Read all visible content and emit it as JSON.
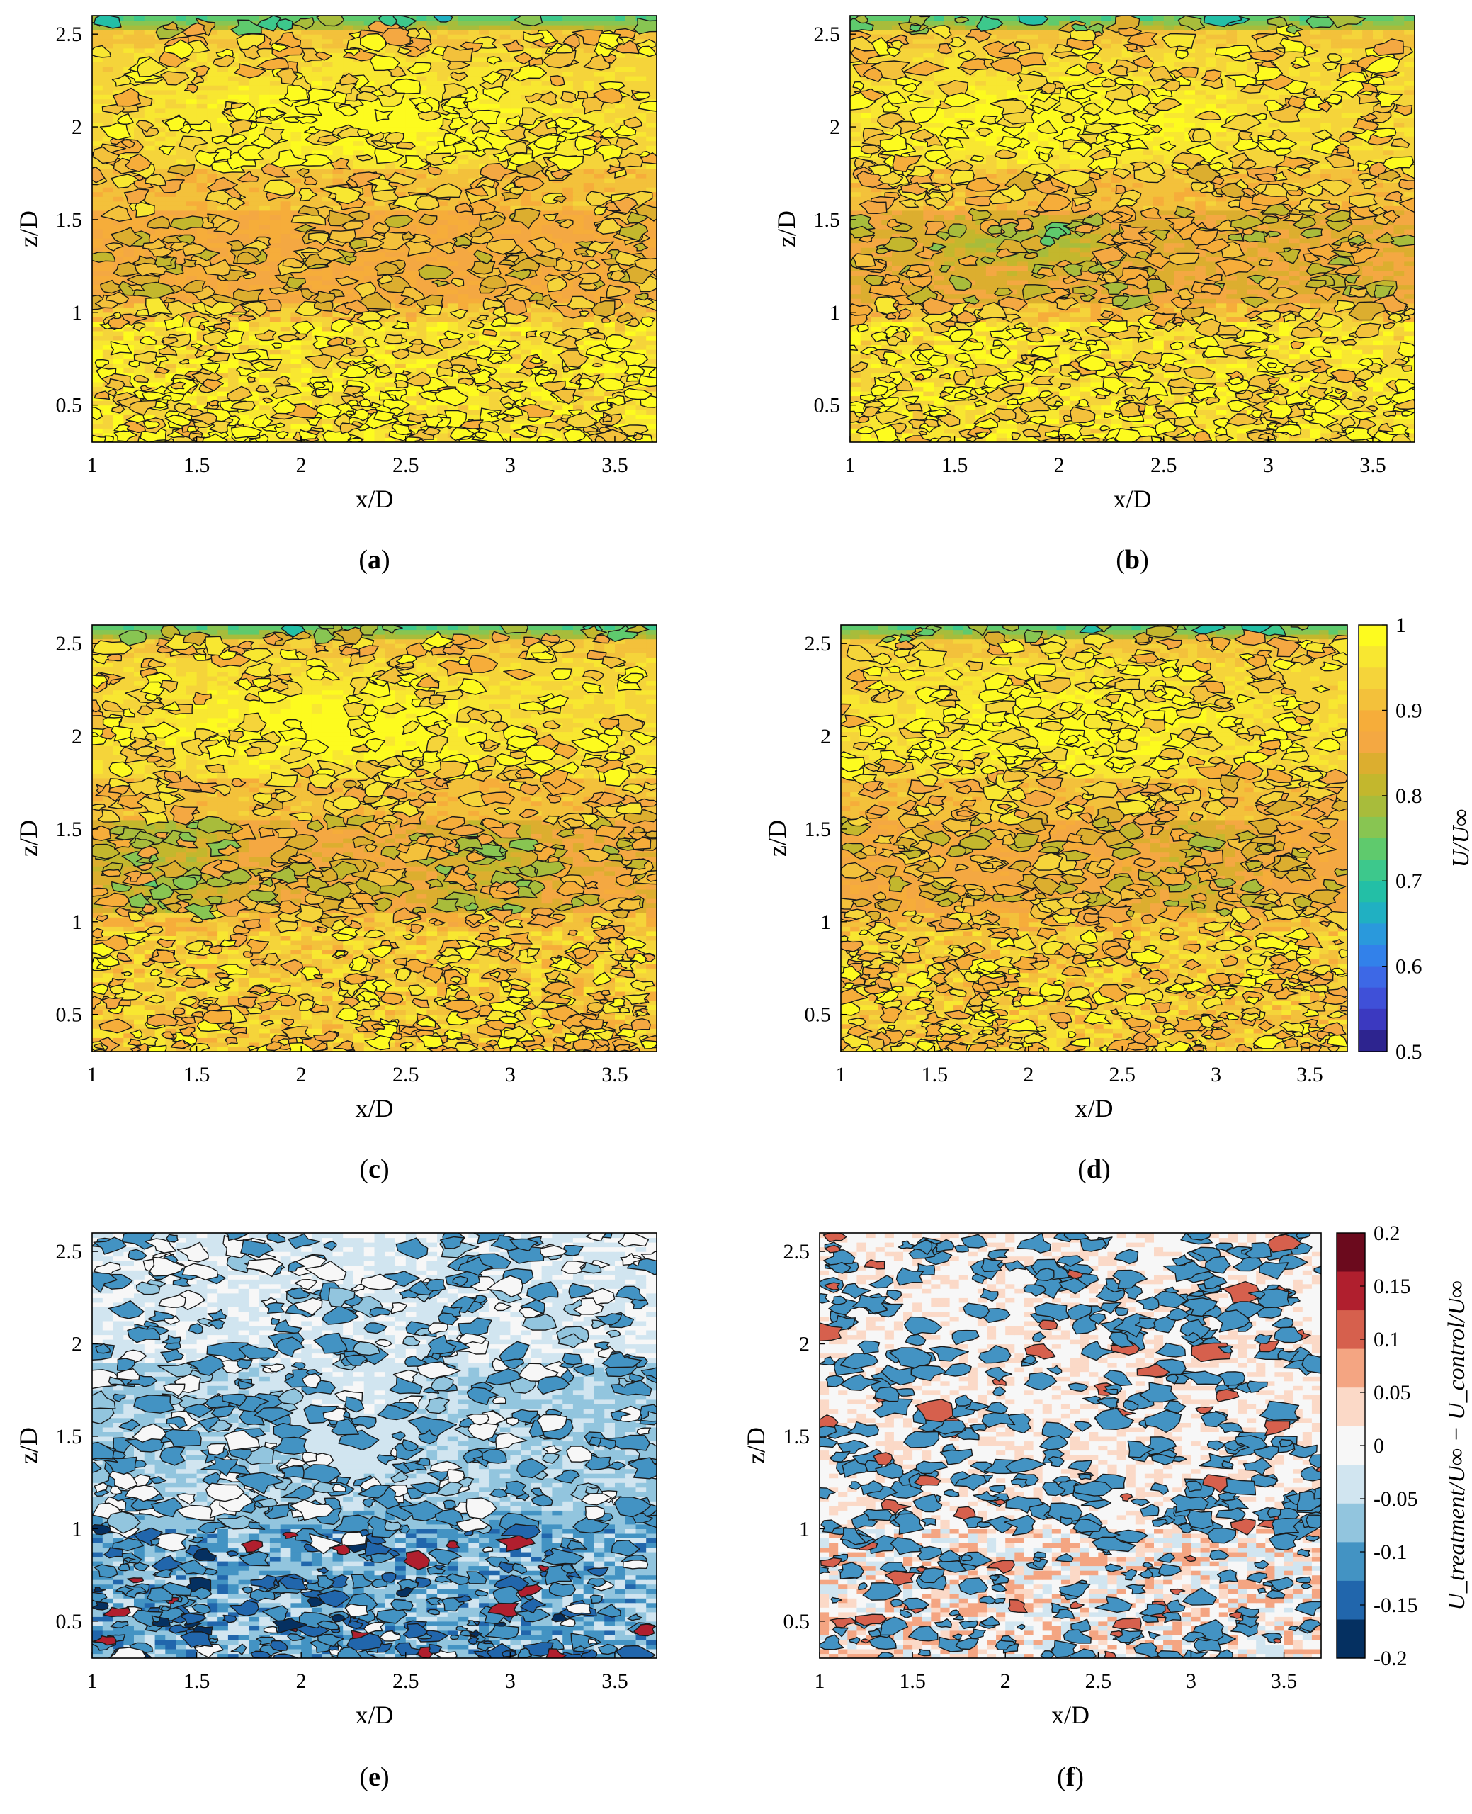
{
  "figure": {
    "panels": [
      {
        "id": "a",
        "caption": "a",
        "colormap": "speed",
        "cbar": false
      },
      {
        "id": "b",
        "caption": "b",
        "colormap": "speed",
        "cbar": false
      },
      {
        "id": "c",
        "caption": "c",
        "colormap": "speed",
        "cbar": false
      },
      {
        "id": "d",
        "caption": "d",
        "colormap": "speed",
        "cbar": true
      },
      {
        "id": "e",
        "caption": "e",
        "colormap": "diff",
        "cbar": false
      },
      {
        "id": "f",
        "caption": "f",
        "colormap": "diff",
        "cbar": true
      }
    ],
    "colorbars": {
      "speed": {
        "label": "U/U∞",
        "ticks": [
          "1",
          "0.9",
          "0.8",
          "0.7",
          "0.6",
          "0.5"
        ],
        "colors": [
          "#fdfb1f",
          "#f8e731",
          "#f5d43a",
          "#f3c13b",
          "#f6ad3a",
          "#f4a842",
          "#dcae2f",
          "#c3b72d",
          "#a8bc3b",
          "#88c552",
          "#5fca6d",
          "#3dc88c",
          "#23bfa6",
          "#20b0c2",
          "#2a99dc",
          "#3281ea",
          "#3d68e6",
          "#3f50d8",
          "#3b39c0",
          "#2d248f"
        ]
      },
      "diff": {
        "label": "U_treatment/U∞ − U_control/U∞",
        "ticks": [
          "0.2",
          "0.15",
          "0.1",
          "0.05",
          "0",
          "-0.05",
          "-0.1",
          "-0.15",
          "-0.2"
        ],
        "colors": [
          "#6b0a1d",
          "#b01f2e",
          "#d6604d",
          "#f4a582",
          "#fbd9c7",
          "#f7f7f7",
          "#d1e5f0",
          "#92c5de",
          "#4393c3",
          "#2166ac",
          "#053061"
        ]
      }
    }
  },
  "chart_data": [
    {
      "type": "heatmap",
      "panel": "a",
      "xlabel": "x/D",
      "ylabel": "z/D",
      "xlim": [
        1,
        3.7
      ],
      "ylim": [
        0.3,
        2.6
      ],
      "xticks": [
        "1",
        "1.5",
        "2",
        "2.5",
        "3",
        "3.5"
      ],
      "yticks": [
        "0.5",
        "1",
        "1.5",
        "2",
        "2.5"
      ],
      "colorbar_label": "U/U∞",
      "clim": [
        0.5,
        1.0
      ],
      "bands": [
        {
          "z_from": 2.5,
          "z_to": 2.6,
          "value": 0.78
        },
        {
          "z_from": 2.2,
          "z_to": 2.45,
          "value": 0.96
        },
        {
          "z_from": 1.8,
          "z_to": 2.15,
          "value": 0.99
        },
        {
          "z_from": 1.5,
          "z_to": 1.7,
          "value": 0.92
        },
        {
          "z_from": 1.15,
          "z_to": 1.45,
          "value": 0.87
        },
        {
          "z_from": 0.3,
          "z_to": 1.0,
          "value": 0.97
        }
      ]
    },
    {
      "type": "heatmap",
      "panel": "b",
      "xlabel": "x/D",
      "ylabel": "z/D",
      "xlim": [
        1,
        3.7
      ],
      "ylim": [
        0.3,
        2.6
      ],
      "xticks": [
        "1",
        "1.5",
        "2",
        "2.5",
        "3",
        "3.5"
      ],
      "yticks": [
        "0.5",
        "1",
        "1.5",
        "2",
        "2.5"
      ],
      "colorbar_label": "U/U∞",
      "clim": [
        0.5,
        1.0
      ],
      "bands": [
        {
          "z_from": 2.5,
          "z_to": 2.6,
          "value": 0.78
        },
        {
          "z_from": 1.9,
          "z_to": 2.4,
          "value": 0.96
        },
        {
          "z_from": 1.55,
          "z_to": 1.75,
          "value": 0.92
        },
        {
          "z_from": 1.2,
          "z_to": 1.5,
          "value": 0.82
        },
        {
          "z_from": 0.3,
          "z_to": 1.1,
          "value": 0.96
        }
      ]
    },
    {
      "type": "heatmap",
      "panel": "c",
      "xlabel": "x/D",
      "ylabel": "z/D",
      "xlim": [
        1,
        3.7
      ],
      "ylim": [
        0.3,
        2.6
      ],
      "xticks": [
        "1",
        "1.5",
        "2",
        "2.5",
        "3",
        "3.5"
      ],
      "yticks": [
        "0.5",
        "1",
        "1.5",
        "2",
        "2.5"
      ],
      "colorbar_label": "U/U∞",
      "clim": [
        0.5,
        1.0
      ],
      "bands": [
        {
          "z_from": 2.5,
          "z_to": 2.6,
          "value": 0.78
        },
        {
          "z_from": 1.9,
          "z_to": 2.4,
          "value": 0.96
        },
        {
          "z_from": 1.55,
          "z_to": 1.75,
          "value": 0.92
        },
        {
          "z_from": 1.05,
          "z_to": 1.5,
          "value": 0.85
        },
        {
          "z_from": 0.3,
          "z_to": 1.0,
          "value": 0.93
        }
      ]
    },
    {
      "type": "heatmap",
      "panel": "d",
      "xlabel": "x/D",
      "ylabel": "z/D",
      "xlim": [
        1,
        3.7
      ],
      "ylim": [
        0.3,
        2.6
      ],
      "xticks": [
        "1",
        "1.5",
        "2",
        "2.5",
        "3",
        "3.5"
      ],
      "yticks": [
        "0.5",
        "1",
        "1.5",
        "2",
        "2.5"
      ],
      "colorbar_label": "U/U∞",
      "clim": [
        0.5,
        1.0
      ],
      "bands": [
        {
          "z_from": 2.5,
          "z_to": 2.6,
          "value": 0.78
        },
        {
          "z_from": 1.9,
          "z_to": 2.4,
          "value": 0.97
        },
        {
          "z_from": 1.55,
          "z_to": 1.75,
          "value": 0.92
        },
        {
          "z_from": 1.15,
          "z_to": 1.5,
          "value": 0.86
        },
        {
          "z_from": 0.3,
          "z_to": 1.05,
          "value": 0.94
        }
      ]
    },
    {
      "type": "heatmap",
      "panel": "e",
      "xlabel": "x/D",
      "ylabel": "z/D",
      "xlim": [
        1,
        3.7
      ],
      "ylim": [
        0.3,
        2.6
      ],
      "xticks": [
        "1",
        "1.5",
        "2",
        "2.5",
        "3",
        "3.5"
      ],
      "yticks": [
        "0.5",
        "1",
        "1.5",
        "2",
        "2.5"
      ],
      "colorbar_label": "U_treatment/U∞ − U_control/U∞",
      "clim": [
        -0.2,
        0.2
      ],
      "bands": [
        {
          "z_from": 1.9,
          "z_to": 2.6,
          "value": -0.02
        },
        {
          "z_from": 1.1,
          "z_to": 1.8,
          "value": -0.07
        },
        {
          "z_from": 0.3,
          "z_to": 1.0,
          "value": -0.1
        }
      ]
    },
    {
      "type": "heatmap",
      "panel": "f",
      "xlabel": "x/D",
      "ylabel": "z/D",
      "xlim": [
        1,
        3.7
      ],
      "ylim": [
        0.3,
        2.6
      ],
      "xticks": [
        "1",
        "1.5",
        "2",
        "2.5",
        "3",
        "3.5"
      ],
      "yticks": [
        "0.5",
        "1",
        "1.5",
        "2",
        "2.5"
      ],
      "colorbar_label": "U_treatment/U∞ − U_control/U∞",
      "clim": [
        -0.2,
        0.2
      ],
      "bands": [
        {
          "z_from": 0.3,
          "z_to": 2.6,
          "value": 0.0
        }
      ]
    }
  ]
}
